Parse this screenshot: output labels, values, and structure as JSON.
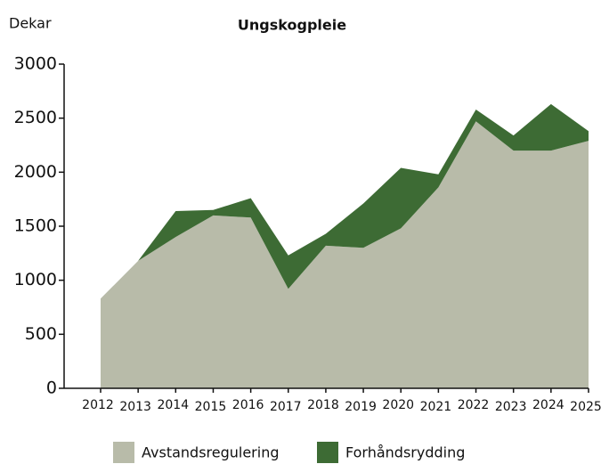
{
  "chart_data": {
    "type": "stacked_area",
    "title": "Ungskogpleie",
    "y_label": "Dekar",
    "categories": [
      "2012",
      "2013",
      "2014",
      "2015",
      "2016",
      "2017",
      "2018",
      "2019",
      "2020",
      "2021",
      "2022",
      "2023",
      "2024",
      "2025"
    ],
    "series": [
      {
        "name": "Avstandsregulering",
        "color": "#b8bba9",
        "values": [
          830,
          1180,
          1400,
          1600,
          1580,
          920,
          1320,
          1300,
          1480,
          1860,
          2470,
          2200,
          2200,
          2290
        ]
      },
      {
        "name": "Forhåndsrydding",
        "color": "#3d6b34",
        "values": [
          0,
          0,
          240,
          50,
          180,
          310,
          110,
          410,
          560,
          120,
          110,
          140,
          430,
          90
        ]
      }
    ],
    "ylim": [
      0,
      3000
    ],
    "yticks": [
      0,
      500,
      1000,
      1500,
      2000,
      2500,
      3000
    ],
    "legend": "bottom"
  }
}
